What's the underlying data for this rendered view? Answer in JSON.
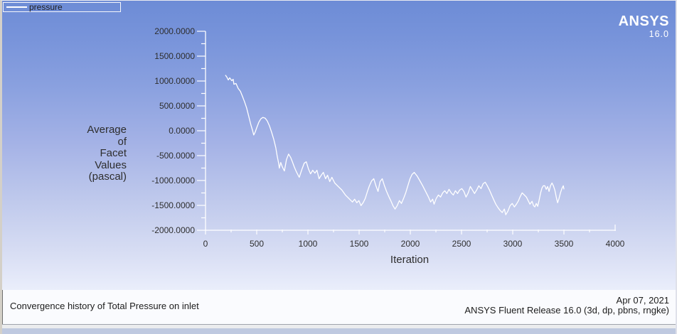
{
  "app": {
    "logo_line1": "ANSYS",
    "logo_line2": "16.0",
    "date": "Apr 07, 2021",
    "release": "ANSYS Fluent Release 16.0 (3d, dp, pbns, rngke)"
  },
  "legend": {
    "series_label": "pressure",
    "line_color": "#ffffff"
  },
  "chart_data": {
    "type": "line",
    "title": "Convergence history of Total Pressure on inlet",
    "xlabel": "Iteration",
    "ylabel": "Average of Facet Values (pascal)",
    "ylabel_lines": [
      "Average",
      "of",
      "Facet",
      "Values",
      "(pascal)"
    ],
    "xlim": [
      0,
      4000
    ],
    "ylim": [
      -2000,
      2000
    ],
    "x_ticks": [
      "0",
      "500",
      "1000",
      "1500",
      "2000",
      "2500",
      "3000",
      "3500",
      "4000"
    ],
    "y_ticks": [
      "2000.0000",
      "1500.0000",
      "1000.0000",
      "500.0000",
      "0.0000",
      "-500.0000",
      "-1000.0000",
      "-1500.0000",
      "-2000.0000"
    ],
    "x_minor_step": 250,
    "y_minor_step": 250,
    "grid": false,
    "legend_position": "top-left",
    "axis_color": "#ffffff",
    "tick_label_color": "#2e2e2e",
    "series": [
      {
        "name": "pressure",
        "color": "#ffffff",
        "points": [
          [
            194,
            1120
          ],
          [
            208,
            1078
          ],
          [
            222,
            1021
          ],
          [
            236,
            1064
          ],
          [
            256,
            1007
          ],
          [
            270,
            1035
          ],
          [
            277,
            936
          ],
          [
            298,
            950
          ],
          [
            319,
            851
          ],
          [
            340,
            794
          ],
          [
            360,
            695
          ],
          [
            381,
            582
          ],
          [
            402,
            454
          ],
          [
            416,
            340
          ],
          [
            430,
            227
          ],
          [
            444,
            113
          ],
          [
            458,
            14
          ],
          [
            471,
            -85
          ],
          [
            485,
            -28
          ],
          [
            499,
            57
          ],
          [
            520,
            170
          ],
          [
            541,
            241
          ],
          [
            561,
            269
          ],
          [
            582,
            255
          ],
          [
            603,
            199
          ],
          [
            624,
            99
          ],
          [
            645,
            -28
          ],
          [
            666,
            -170
          ],
          [
            686,
            -340
          ],
          [
            700,
            -511
          ],
          [
            714,
            -652
          ],
          [
            721,
            -752
          ],
          [
            735,
            -638
          ],
          [
            749,
            -723
          ],
          [
            770,
            -808
          ],
          [
            790,
            -582
          ],
          [
            811,
            -468
          ],
          [
            832,
            -539
          ],
          [
            846,
            -610
          ],
          [
            866,
            -723
          ],
          [
            887,
            -823
          ],
          [
            901,
            -879
          ],
          [
            915,
            -936
          ],
          [
            943,
            -766
          ],
          [
            964,
            -652
          ],
          [
            984,
            -624
          ],
          [
            1005,
            -766
          ],
          [
            1026,
            -865
          ],
          [
            1047,
            -794
          ],
          [
            1068,
            -851
          ],
          [
            1088,
            -794
          ],
          [
            1109,
            -964
          ],
          [
            1130,
            -894
          ],
          [
            1151,
            -837
          ],
          [
            1172,
            -964
          ],
          [
            1192,
            -894
          ],
          [
            1213,
            -1021
          ],
          [
            1234,
            -936
          ],
          [
            1262,
            -1050
          ],
          [
            1296,
            -1120
          ],
          [
            1331,
            -1191
          ],
          [
            1366,
            -1291
          ],
          [
            1400,
            -1362
          ],
          [
            1435,
            -1433
          ],
          [
            1456,
            -1376
          ],
          [
            1477,
            -1447
          ],
          [
            1497,
            -1404
          ],
          [
            1518,
            -1504
          ],
          [
            1539,
            -1447
          ],
          [
            1560,
            -1362
          ],
          [
            1581,
            -1220
          ],
          [
            1601,
            -1106
          ],
          [
            1622,
            -1007
          ],
          [
            1643,
            -964
          ],
          [
            1664,
            -1106
          ],
          [
            1685,
            -1220
          ],
          [
            1705,
            -1021
          ],
          [
            1726,
            -964
          ],
          [
            1747,
            -1106
          ],
          [
            1768,
            -1220
          ],
          [
            1789,
            -1319
          ],
          [
            1809,
            -1404
          ],
          [
            1830,
            -1504
          ],
          [
            1851,
            -1574
          ],
          [
            1872,
            -1504
          ],
          [
            1893,
            -1404
          ],
          [
            1913,
            -1461
          ],
          [
            1934,
            -1362
          ],
          [
            1955,
            -1248
          ],
          [
            1976,
            -1106
          ],
          [
            1997,
            -964
          ],
          [
            2017,
            -879
          ],
          [
            2038,
            -837
          ],
          [
            2066,
            -908
          ],
          [
            2094,
            -1007
          ],
          [
            2121,
            -1106
          ],
          [
            2149,
            -1220
          ],
          [
            2177,
            -1333
          ],
          [
            2198,
            -1433
          ],
          [
            2218,
            -1376
          ],
          [
            2232,
            -1475
          ],
          [
            2253,
            -1362
          ],
          [
            2274,
            -1291
          ],
          [
            2295,
            -1333
          ],
          [
            2316,
            -1248
          ],
          [
            2336,
            -1206
          ],
          [
            2357,
            -1262
          ],
          [
            2378,
            -1177
          ],
          [
            2399,
            -1248
          ],
          [
            2420,
            -1291
          ],
          [
            2440,
            -1206
          ],
          [
            2461,
            -1262
          ],
          [
            2482,
            -1191
          ],
          [
            2503,
            -1163
          ],
          [
            2523,
            -1220
          ],
          [
            2544,
            -1333
          ],
          [
            2565,
            -1248
          ],
          [
            2586,
            -1120
          ],
          [
            2607,
            -1191
          ],
          [
            2627,
            -1262
          ],
          [
            2648,
            -1191
          ],
          [
            2669,
            -1106
          ],
          [
            2690,
            -1163
          ],
          [
            2711,
            -1064
          ],
          [
            2731,
            -1035
          ],
          [
            2752,
            -1106
          ],
          [
            2773,
            -1191
          ],
          [
            2794,
            -1291
          ],
          [
            2815,
            -1390
          ],
          [
            2835,
            -1475
          ],
          [
            2856,
            -1546
          ],
          [
            2877,
            -1603
          ],
          [
            2898,
            -1645
          ],
          [
            2918,
            -1574
          ],
          [
            2932,
            -1688
          ],
          [
            2953,
            -1617
          ],
          [
            2974,
            -1504
          ],
          [
            2995,
            -1461
          ],
          [
            3016,
            -1532
          ],
          [
            3036,
            -1475
          ],
          [
            3057,
            -1404
          ],
          [
            3071,
            -1333
          ],
          [
            3092,
            -1248
          ],
          [
            3113,
            -1291
          ],
          [
            3133,
            -1333
          ],
          [
            3147,
            -1390
          ],
          [
            3168,
            -1475
          ],
          [
            3189,
            -1418
          ],
          [
            3203,
            -1504
          ],
          [
            3216,
            -1532
          ],
          [
            3230,
            -1461
          ],
          [
            3244,
            -1518
          ],
          [
            3258,
            -1390
          ],
          [
            3272,
            -1248
          ],
          [
            3286,
            -1149
          ],
          [
            3299,
            -1106
          ],
          [
            3313,
            -1106
          ],
          [
            3327,
            -1177
          ],
          [
            3341,
            -1120
          ],
          [
            3355,
            -1220
          ],
          [
            3369,
            -1106
          ],
          [
            3383,
            -1050
          ],
          [
            3397,
            -1106
          ],
          [
            3411,
            -1191
          ],
          [
            3425,
            -1333
          ],
          [
            3438,
            -1447
          ],
          [
            3452,
            -1362
          ],
          [
            3466,
            -1248
          ],
          [
            3480,
            -1163
          ],
          [
            3494,
            -1106
          ],
          [
            3501,
            -1177
          ]
        ]
      }
    ]
  }
}
